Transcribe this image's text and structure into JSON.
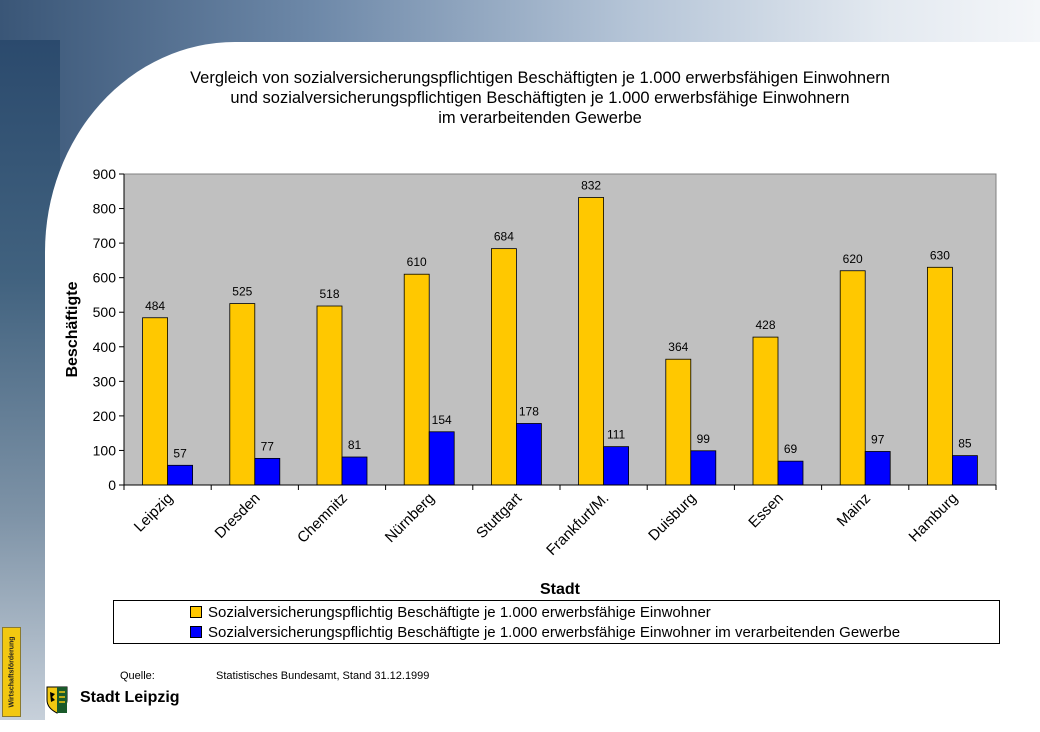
{
  "header": {
    "title_lines": [
      "Vergleich von sozialversicherungspflichtigen Beschäftigten je 1.000 erwerbsfähigen Einwohnern",
      "und sozialversicherungspflichtigen Beschäftigten je 1.000 erwerbsfähige Einwohnern",
      "im verarbeitenden Gewerbe"
    ]
  },
  "chart_data": {
    "type": "bar",
    "categories": [
      "Leipzig",
      "Dresden",
      "Chemnitz",
      "Nürnberg",
      "Stuttgart",
      "Frankfurt/M.",
      "Duisburg",
      "Essen",
      "Mainz",
      "Hamburg"
    ],
    "series": [
      {
        "name": "Sozialversicherungspflichtig Beschäftigte je 1.000 erwerbsfähige Einwohner",
        "color": "#FFC800",
        "values": [
          484,
          525,
          518,
          610,
          684,
          832,
          364,
          428,
          620,
          630
        ]
      },
      {
        "name": "Sozialversicherungspflichtig Beschäftigte je 1.000 erwerbsfähige Einwohner im verarbeitenden Gewerbe",
        "color": "#0000FF",
        "values": [
          57,
          77,
          81,
          154,
          178,
          111,
          99,
          69,
          97,
          85
        ]
      }
    ],
    "xlabel": "Stadt",
    "ylabel": "Beschäftigte",
    "ylim": [
      0,
      900
    ],
    "yticks": [
      0,
      100,
      200,
      300,
      400,
      500,
      600,
      700,
      800,
      900
    ],
    "plot_background": "#C0C0C0",
    "legend_position": "bottom",
    "grid": false
  },
  "footer": {
    "source_label": "Quelle:",
    "source_text": "Statistisches Bundesamt, Stand 31.12.1999",
    "badge_text": "Wirtschaftsförderung",
    "brand": "Stadt Leipzig"
  }
}
